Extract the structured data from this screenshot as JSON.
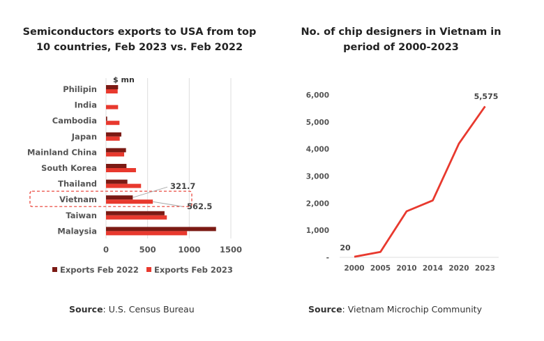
{
  "chart_data": [
    {
      "type": "bar",
      "orientation": "horizontal",
      "title": "Semiconductors exports to USA from top 10 countries, Feb 2023 vs. Feb 2022",
      "unit_label": "$  mn",
      "categories": [
        "Philipin",
        "India",
        "Cambodia",
        "Japan",
        "Mainland China",
        "South Korea",
        "Thailand",
        "Vietnam",
        "Taiwan",
        "Malaysia"
      ],
      "series": [
        {
          "name": "Exports Feb 2022",
          "color": "#7b1a14",
          "values": [
            145,
            0,
            14,
            184,
            240,
            246,
            257,
            321.7,
            703,
            1322
          ]
        },
        {
          "name": "Exports Feb 2023",
          "color": "#e8392e",
          "values": [
            140,
            145,
            162,
            165,
            218,
            360,
            421,
            562.5,
            731,
            974
          ]
        }
      ],
      "xlim": [
        0,
        1500
      ],
      "xticks": [
        "0",
        "500",
        "1000",
        "1500"
      ],
      "annotations": [
        {
          "category": "Vietnam",
          "labels": [
            "321.7",
            "562.5"
          ],
          "highlighted": true
        }
      ],
      "grid": "vertical",
      "legend": "bottom",
      "source_label": "Source",
      "source": ": U.S. Census Bureau"
    },
    {
      "type": "line",
      "title": "No. of chip designers in Vietnam in period of 2000-2023",
      "categories": [
        "2000",
        "2005",
        "2010",
        "2014",
        "2020",
        "2023"
      ],
      "values": [
        20,
        200,
        1700,
        2100,
        4200,
        5575
      ],
      "color": "#e8392e",
      "ylim": [
        0,
        6000
      ],
      "yticks": [
        "-",
        "1,000",
        "2,000",
        "3,000",
        "4,000",
        "5,000",
        "6,000"
      ],
      "data_labels": {
        "first": "20",
        "last": "5,575"
      },
      "grid": "none",
      "source_label": "Source",
      "source": ": Vietnam Microchip Community"
    }
  ]
}
